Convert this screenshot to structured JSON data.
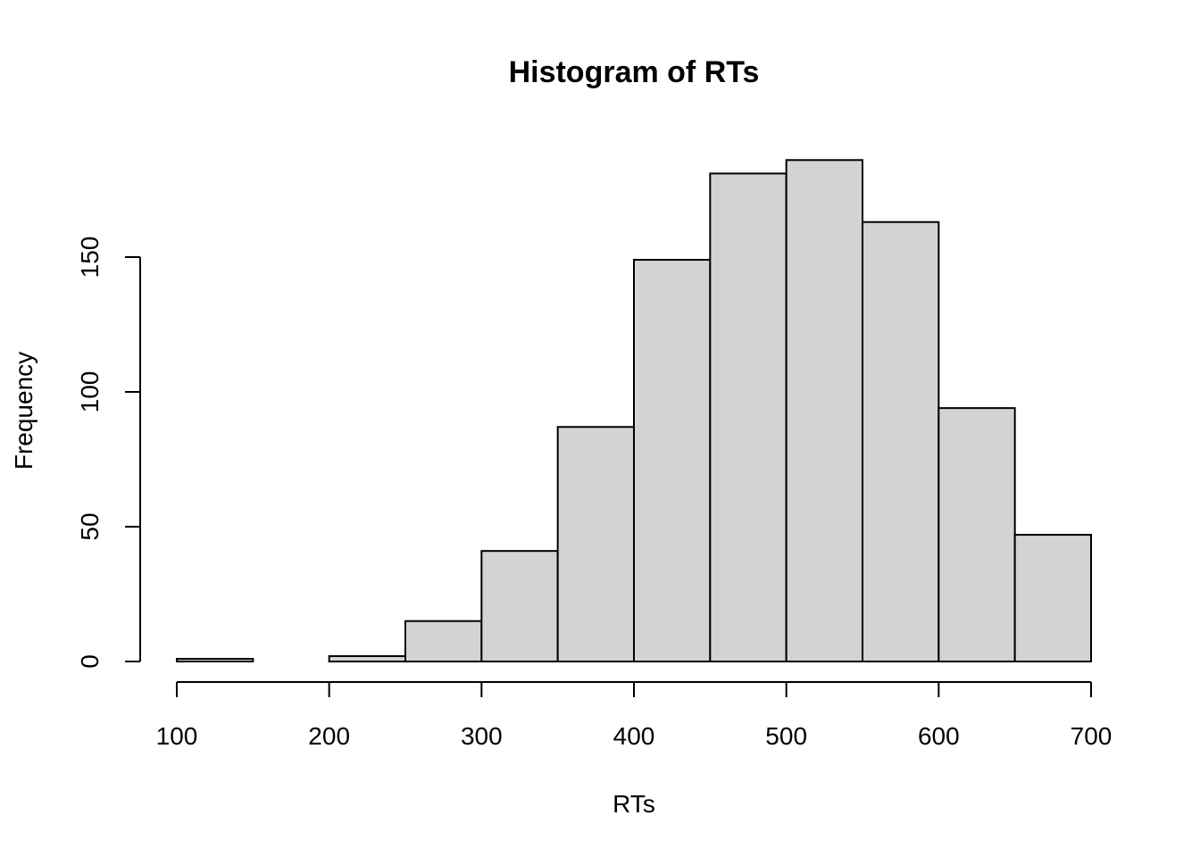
{
  "chart_data": {
    "type": "bar",
    "title": "Histogram of RTs",
    "xlabel": "RTs",
    "ylabel": "Frequency",
    "xlim": [
      100,
      700
    ],
    "ylim": [
      0,
      185
    ],
    "x_ticks": [
      100,
      200,
      300,
      400,
      500,
      600,
      700
    ],
    "y_ticks": [
      0,
      50,
      100,
      150
    ],
    "bin_edges": [
      100,
      150,
      200,
      250,
      300,
      350,
      400,
      450,
      500,
      550,
      600,
      650,
      700
    ],
    "values": [
      1,
      0,
      2,
      15,
      41,
      87,
      149,
      181,
      186,
      163,
      94,
      47
    ],
    "bar_color": "#d3d3d3",
    "border_color": "#000000"
  }
}
